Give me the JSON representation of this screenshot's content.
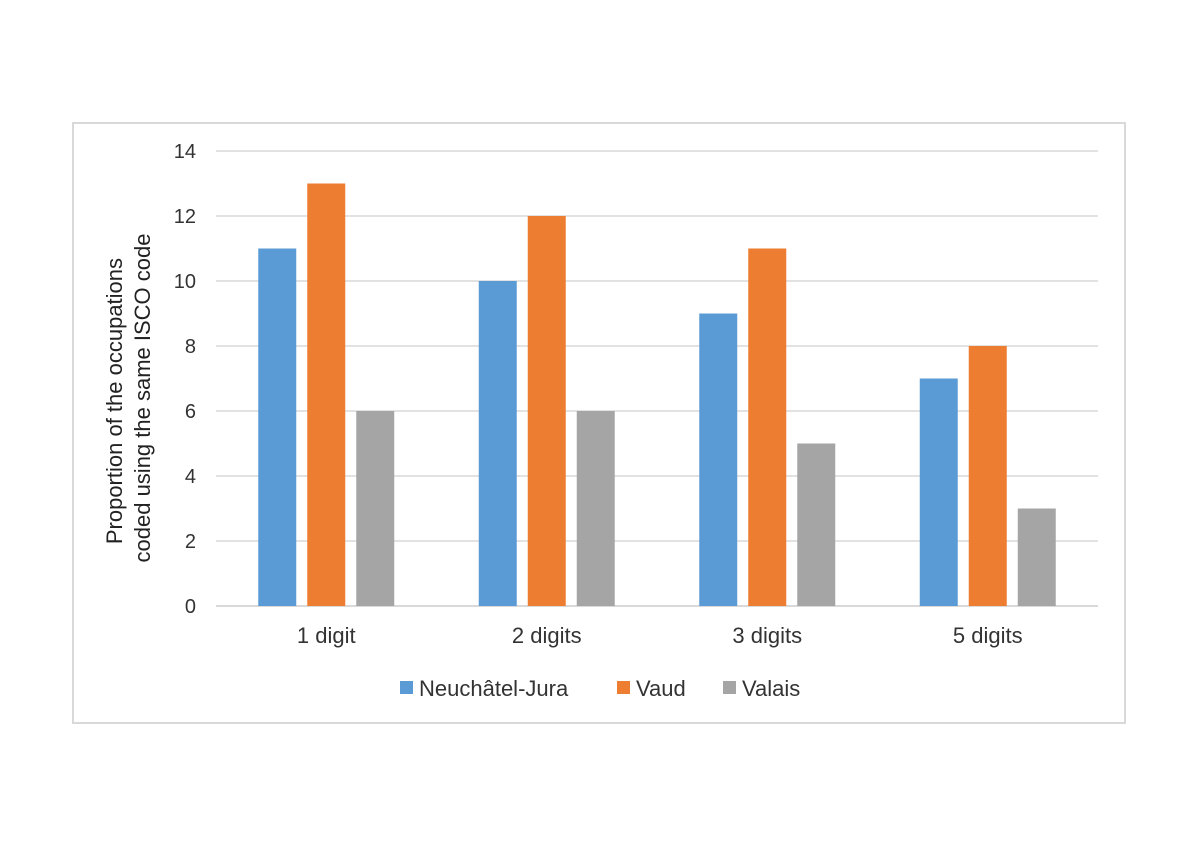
{
  "chart_data": {
    "type": "bar",
    "title": "",
    "xlabel": "",
    "ylabel_lines": [
      "Proportion of the occupations",
      "coded using the same ISCO code"
    ],
    "categories": [
      "1 digit",
      "2 digits",
      "3 digits",
      "5 digits"
    ],
    "series": [
      {
        "name": "Neuchâtel-Jura",
        "color": "#5b9bd5",
        "values": [
          11,
          10,
          9,
          7
        ]
      },
      {
        "name": "Vaud",
        "color": "#ed7d31",
        "values": [
          13,
          12,
          11,
          8
        ]
      },
      {
        "name": "Valais",
        "color": "#a5a5a5",
        "values": [
          6,
          6,
          5,
          3
        ]
      }
    ],
    "ylim": [
      0,
      14
    ],
    "yticks": [
      "0",
      "2",
      "4",
      "6",
      "8",
      "10",
      "12",
      "14"
    ],
    "grid": true,
    "legend_position": "bottom"
  }
}
